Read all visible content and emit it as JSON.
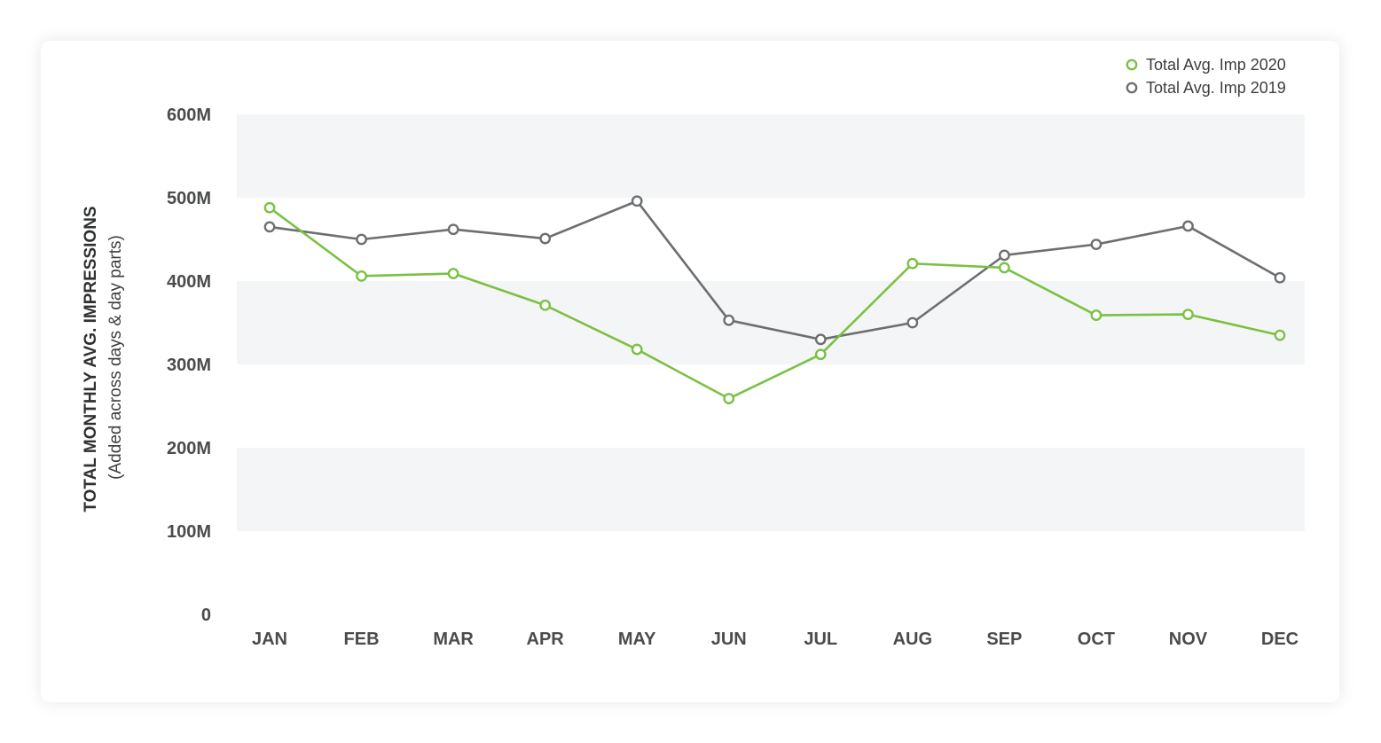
{
  "chart_data": {
    "type": "line",
    "categories": [
      "JAN",
      "FEB",
      "MAR",
      "APR",
      "MAY",
      "JUN",
      "JUL",
      "AUG",
      "SEP",
      "OCT",
      "NOV",
      "DEC"
    ],
    "series": [
      {
        "name": "Total Avg. Imp 2020",
        "color": "#7ac143",
        "values": [
          488,
          406,
          409,
          371,
          318,
          259,
          312,
          421,
          416,
          359,
          360,
          335
        ]
      },
      {
        "name": "Total Avg. Imp 2019",
        "color": "#6d6e70",
        "values": [
          465,
          450,
          462,
          451,
          496,
          353,
          330,
          350,
          431,
          444,
          466,
          404
        ]
      }
    ],
    "ylabel": "TOTAL MONTHLY AVG. IMPRESSIONS",
    "ylabel_sub": "(Added across days & day parts)",
    "yticks": [
      "0",
      "100M",
      "200M",
      "300M",
      "400M",
      "500M",
      "600M"
    ],
    "ylim": [
      0,
      600
    ],
    "legend": "top-right",
    "band_color": "#f4f5f6"
  }
}
